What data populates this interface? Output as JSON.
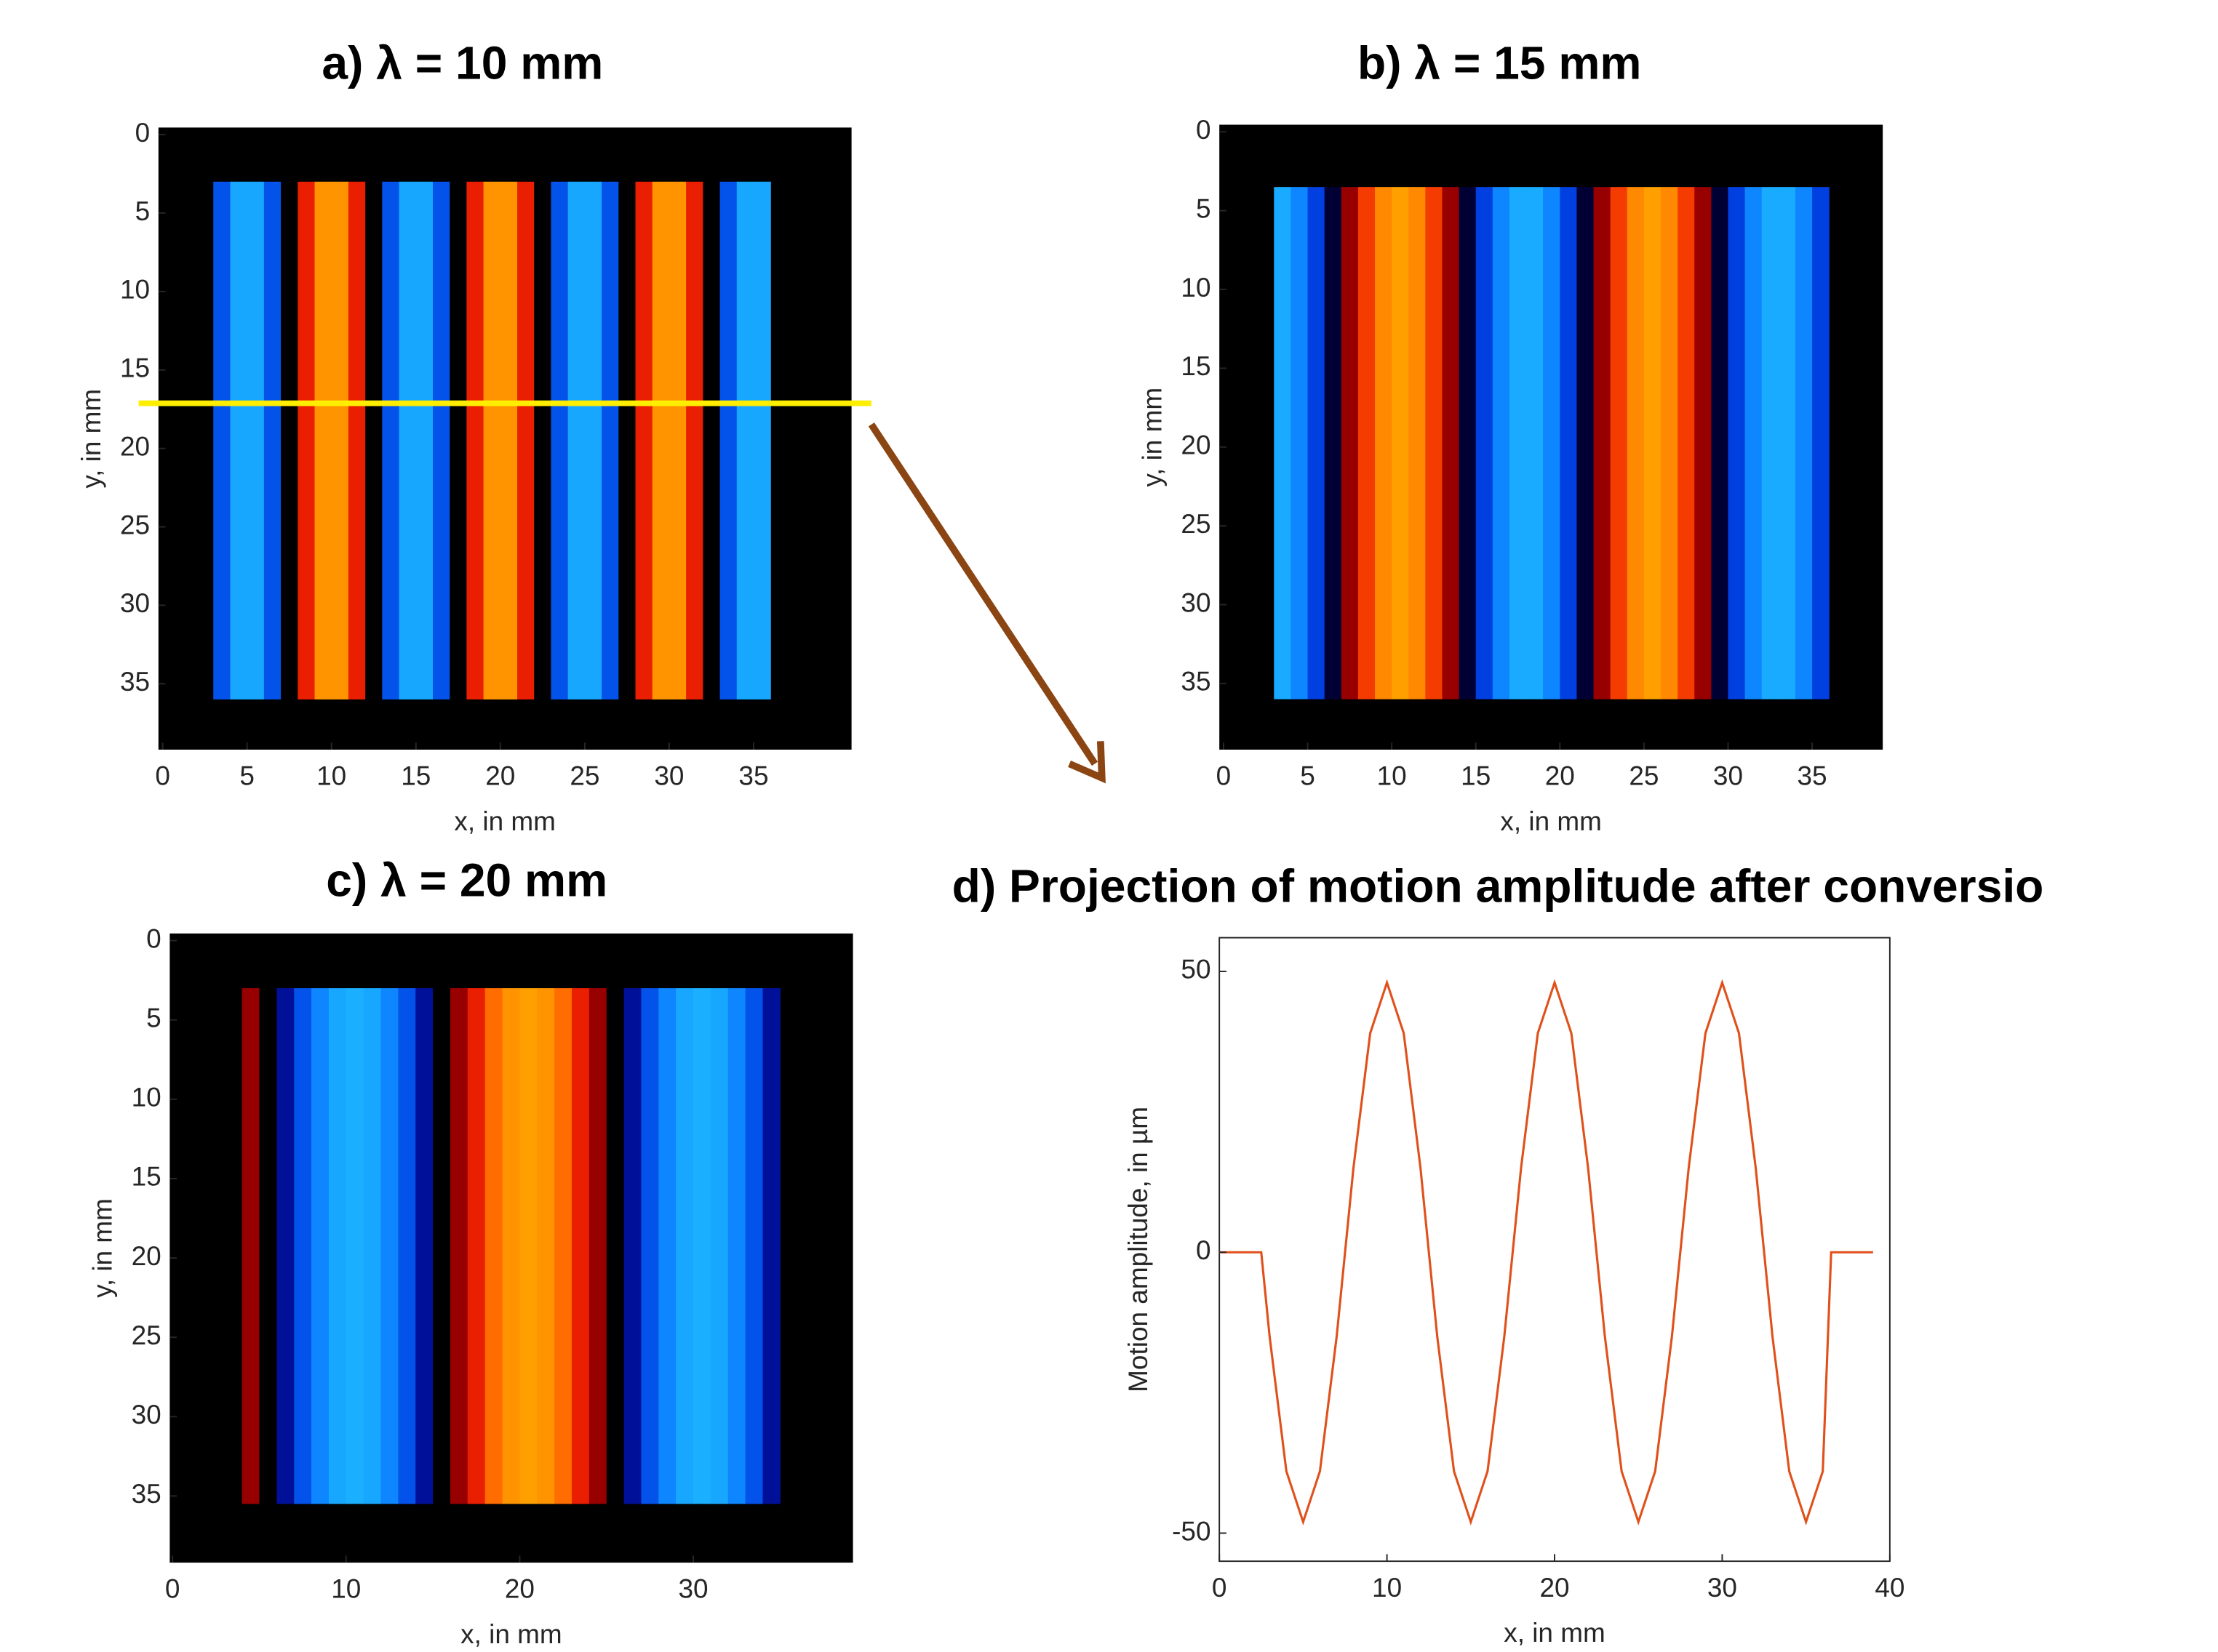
{
  "chart_data": [
    {
      "type": "heatmap",
      "title": "a) λ = 10 mm",
      "xlabel": "x, in mm",
      "ylabel": "y, in mm",
      "xlim": [
        -0.25,
        40.8
      ],
      "ylim": [
        -0.45,
        39.2
      ],
      "y_direction": "reverse",
      "xticks": [
        0,
        5,
        10,
        15,
        20,
        25,
        30,
        35
      ],
      "yticks": [
        0,
        5,
        10,
        15,
        20,
        25,
        30,
        35
      ],
      "background": "#000000",
      "clim": [
        -48,
        48
      ],
      "colormap": [
        "#1ab0ff",
        "#0878ff",
        "#0040e0",
        "#000080",
        "#000000",
        "#800000",
        "#e00000",
        "#ff5a00",
        "#ffa000"
      ],
      "y_range": [
        3,
        36
      ],
      "x": [
        3.5,
        4.5,
        5.5,
        6.5,
        7.5,
        8.5,
        9.5,
        10.5,
        11.5,
        12.5,
        13.5,
        14.5,
        15.5,
        16.5,
        17.5,
        18.5,
        19.5,
        20.5,
        21.5,
        22.5,
        23.5,
        24.5,
        25.5,
        26.5,
        27.5,
        28.5,
        29.5,
        30.5,
        31.5,
        32.5,
        33.5,
        34.5,
        35.5
      ],
      "values": [
        -28,
        -46,
        -46,
        -28,
        0,
        28,
        46,
        46,
        28,
        0,
        -28,
        -46,
        -46,
        -28,
        0,
        28,
        46,
        46,
        28,
        0,
        -28,
        -46,
        -46,
        -28,
        0,
        28,
        46,
        46,
        28,
        0,
        -28,
        -46,
        -46
      ]
    },
    {
      "type": "heatmap",
      "title": "b) λ = 15 mm",
      "xlabel": "x, in mm",
      "ylabel": "y, in mm",
      "xlim": [
        -0.25,
        39.2
      ],
      "ylim": [
        -0.45,
        39.2
      ],
      "y_direction": "reverse",
      "xticks": [
        0,
        5,
        10,
        15,
        20,
        25,
        30,
        35
      ],
      "yticks": [
        0,
        5,
        10,
        15,
        20,
        25,
        30,
        35
      ],
      "background": "#000000",
      "clim": [
        -48,
        48
      ],
      "colormap": [
        "#1ab0ff",
        "#0878ff",
        "#0040e0",
        "#000080",
        "#000000",
        "#800000",
        "#e00000",
        "#ff5a00",
        "#ffa000"
      ],
      "y_range": [
        3.5,
        36
      ],
      "x": [
        3.5,
        4.5,
        5.5,
        6.5,
        7.5,
        8.5,
        9.5,
        10.5,
        11.5,
        12.5,
        13.5,
        14.5,
        15.5,
        16.5,
        17.5,
        18.5,
        19.5,
        20.5,
        21.5,
        22.5,
        23.5,
        24.5,
        25.5,
        26.5,
        27.5,
        28.5,
        29.5,
        30.5,
        31.5,
        32.5,
        33.5,
        34.5,
        35.5
      ],
      "values": [
        -47,
        -39,
        -24,
        -5,
        15,
        32,
        44,
        48,
        44,
        32,
        15,
        -5,
        -24,
        -39,
        -47,
        -47,
        -39,
        -24,
        -5,
        15,
        32,
        44,
        48,
        44,
        32,
        15,
        -5,
        -24,
        -39,
        -47,
        -47,
        -39,
        -24
      ]
    },
    {
      "type": "heatmap",
      "title": "c) λ = 20 mm",
      "xlabel": "x, in mm",
      "ylabel": "y, in mm",
      "xlim": [
        -0.16,
        39.2
      ],
      "ylim": [
        -0.45,
        39.2
      ],
      "y_direction": "reverse",
      "xticks": [
        0,
        10,
        20,
        30
      ],
      "yticks": [
        0,
        5,
        10,
        15,
        20,
        25,
        30,
        35
      ],
      "background": "#000000",
      "clim": [
        -48,
        48
      ],
      "colormap": [
        "#1ab0ff",
        "#0878ff",
        "#0040e0",
        "#000080",
        "#000000",
        "#800000",
        "#e00000",
        "#ff5a00",
        "#ffa000"
      ],
      "y_range": [
        3,
        35.5
      ],
      "x": [
        4.5,
        5.5,
        6.5,
        7.5,
        8.5,
        9.5,
        10.5,
        11.5,
        12.5,
        13.5,
        14.5,
        15.5,
        16.5,
        17.5,
        18.5,
        19.5,
        20.5,
        21.5,
        22.5,
        23.5,
        24.5,
        25.5,
        26.5,
        27.5,
        28.5,
        29.5,
        30.5,
        31.5,
        32.5,
        33.5,
        34.5
      ],
      "values": [
        15,
        0,
        -15,
        -28,
        -39,
        -46,
        -48,
        -46,
        -39,
        -28,
        -15,
        0,
        15,
        28,
        39,
        46,
        48,
        46,
        39,
        28,
        15,
        0,
        -15,
        -28,
        -39,
        -46,
        -48,
        -46,
        -39,
        -28,
        -15
      ]
    },
    {
      "type": "line",
      "title": "d) Projection of motion amplitude after conversio",
      "xlabel": "x, in mm",
      "ylabel": "Motion amplitude, in µm",
      "xlim": [
        0,
        40
      ],
      "ylim": [
        -55,
        56
      ],
      "xticks": [
        0,
        10,
        20,
        30,
        40
      ],
      "yticks": [
        -50,
        0,
        50
      ],
      "color": "#e0501a",
      "x": [
        0,
        1,
        2,
        2.5,
        3,
        4,
        5,
        6,
        7,
        8,
        9,
        10,
        11,
        12,
        13,
        14,
        15,
        16,
        17,
        18,
        19,
        20,
        21,
        22,
        23,
        24,
        25,
        26,
        27,
        28,
        29,
        30,
        31,
        32,
        33,
        34,
        35,
        36,
        36.5,
        37,
        38,
        39
      ],
      "values": [
        0,
        0,
        0,
        0,
        -15,
        -39,
        -48,
        -39,
        -15,
        15,
        39,
        48,
        39,
        15,
        -15,
        -39,
        -48,
        -39,
        -15,
        15,
        39,
        48,
        39,
        15,
        -15,
        -39,
        -48,
        -39,
        -15,
        15,
        39,
        48,
        39,
        15,
        -15,
        -39,
        -48,
        -39,
        0,
        0,
        0,
        0
      ]
    }
  ]
}
